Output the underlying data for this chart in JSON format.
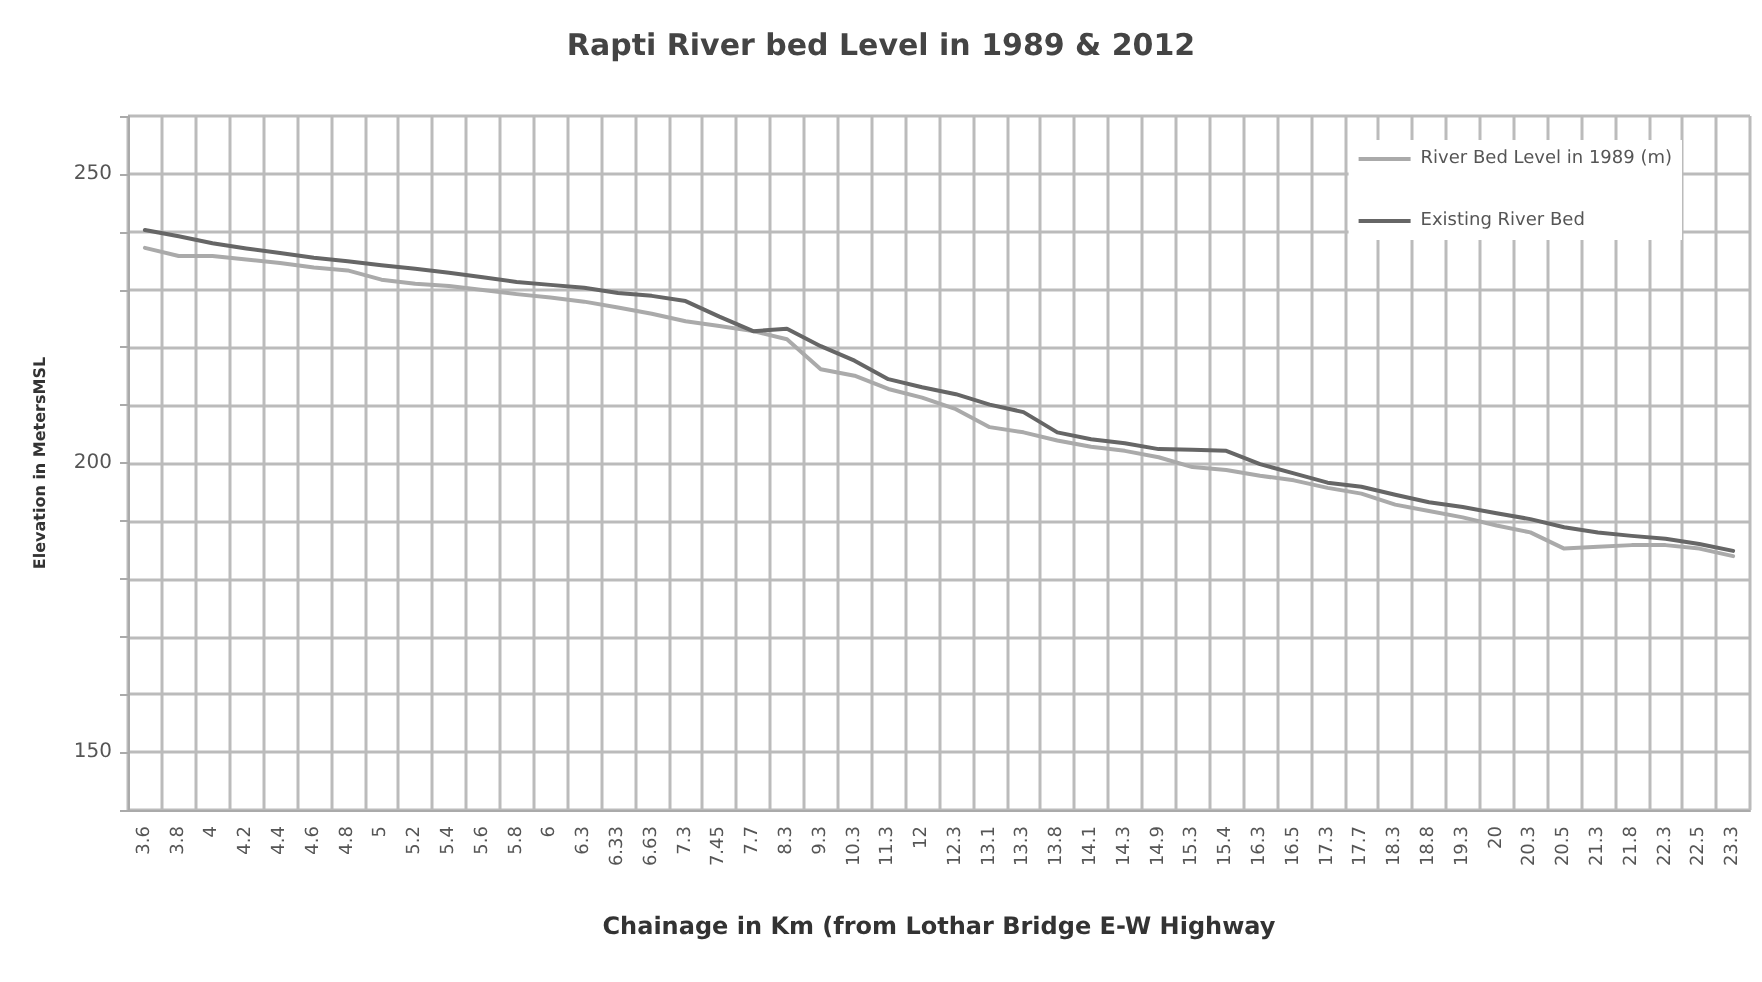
{
  "chart_data": {
    "type": "line",
    "title": "Rapti River bed Level in 1989 & 2012",
    "xlabel": "Chainage in Km (from Lothar Bridge E-W Highway",
    "ylabel": "Elevation in MetersMSL",
    "categories": [
      "3.6",
      "3.8",
      "4",
      "4.2",
      "4.4",
      "4.6",
      "4.8",
      "5",
      "5.2",
      "5.4",
      "5.6",
      "5.8",
      "6",
      "6.3",
      "6.33",
      "6.63",
      "7.3",
      "7.45",
      "7.7",
      "8.3",
      "9.3",
      "10.3",
      "11.3",
      "12",
      "12.3",
      "13.1",
      "13.3",
      "13.8",
      "14.1",
      "14.3",
      "14.9",
      "15.3",
      "15.4",
      "16.3",
      "16.5",
      "17.3",
      "17.7",
      "18.3",
      "18.8",
      "19.3",
      "20",
      "20.3",
      "20.5",
      "21.3",
      "21.8",
      "22.3",
      "22.5",
      "23.3"
    ],
    "series": [
      {
        "name": "River Bed Level in 1989 (m)",
        "color": "#aaaaaa",
        "values": [
          237.2,
          235.8,
          235.8,
          235.2,
          234.6,
          233.8,
          233.3,
          231.7,
          231,
          230.6,
          229.9,
          229.2,
          228.6,
          227.9,
          226.9,
          225.8,
          224.5,
          223.7,
          222.8,
          221.4,
          216.2,
          215.1,
          212.8,
          211.3,
          209.3,
          206.2,
          205.3,
          203.9,
          202.8,
          202.1,
          201,
          199.3,
          198.8,
          197.8,
          197,
          195.7,
          194.7,
          192.8,
          191.7,
          190.6,
          189.2,
          188,
          185.2,
          185.5,
          185.8,
          185.8,
          185.2,
          183.9
        ]
      },
      {
        "name": "Existing River Bed",
        "color": "#666666",
        "values": [
          240.3,
          239.2,
          238,
          237.1,
          236.3,
          235.5,
          234.9,
          234.2,
          233.6,
          232.9,
          232.1,
          231.3,
          230.8,
          230.3,
          229.4,
          228.9,
          228,
          225.3,
          222.8,
          223.2,
          220.2,
          217.7,
          214.5,
          213.1,
          211.9,
          210.1,
          208.8,
          205.3,
          204.1,
          203.4,
          202.4,
          202.3,
          202.1,
          199.8,
          198.2,
          196.6,
          195.9,
          194.5,
          193.2,
          192.4,
          191.3,
          190.3,
          188.9,
          188,
          187.4,
          186.9,
          186,
          184.8
        ]
      }
    ],
    "ylim": [
      140,
      260
    ],
    "yticks": [
      {
        "value": 140,
        "label": null
      },
      150,
      {
        "value": 160,
        "label": null
      },
      {
        "value": 170,
        "label": null
      },
      {
        "value": 180,
        "label": null
      },
      {
        "value": 190,
        "label": null
      },
      200,
      {
        "value": 210,
        "label": null
      },
      {
        "value": 220,
        "label": null
      },
      {
        "value": 230,
        "label": null
      },
      {
        "value": 240,
        "label": null
      },
      250,
      {
        "value": 260,
        "label": null
      }
    ],
    "grid": true,
    "legend": "top right",
    "marker": "none",
    "line_style": "solid"
  }
}
